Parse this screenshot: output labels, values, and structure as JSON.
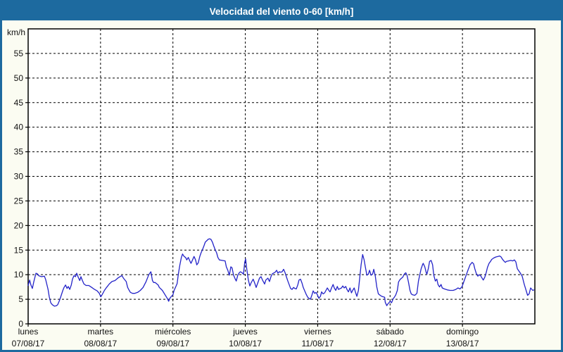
{
  "window": {
    "title": "Velocidad del viento 0-60 [km/h]"
  },
  "colors": {
    "frame_and_header": "#1d6a9f",
    "window_background": "#fbfcf2",
    "plot_background": "#ffffff",
    "grid_and_axis": "#000000",
    "tick_text": "#111111",
    "line": "#2323c8",
    "title_text": "#ffffff"
  },
  "chart_data": {
    "type": "line",
    "title": "Velocidad del viento 0-60 [km/h]",
    "unit_label": "km/h",
    "ylabel": "km/h",
    "ylim": [
      0,
      60
    ],
    "ytick_step": 5,
    "ytick_labels": [
      "0",
      "5",
      "10",
      "15",
      "20",
      "25",
      "30",
      "35",
      "40",
      "45",
      "50",
      "55"
    ],
    "grid": "dashed-both-axes",
    "legend": "none",
    "x_total_hours": 168,
    "x_categories": [
      {
        "day": "lunes",
        "date": "07/08/17"
      },
      {
        "day": "martes",
        "date": "08/08/17"
      },
      {
        "day": "miércoles",
        "date": "09/08/17"
      },
      {
        "day": "jueves",
        "date": "10/08/17"
      },
      {
        "day": "viernes",
        "date": "11/08/17"
      },
      {
        "day": "sábado",
        "date": "12/08/17"
      },
      {
        "day": "domingo",
        "date": "13/08/17"
      }
    ],
    "series": [
      {
        "name": "Velocidad del viento",
        "unit": "km/h",
        "samples": [
          [
            0,
            7.8
          ],
          [
            0.5,
            8.9
          ],
          [
            0.9,
            7.9
          ],
          [
            1.4,
            7.2
          ],
          [
            1.9,
            8.6
          ],
          [
            2.6,
            10.3
          ],
          [
            3,
            10.2
          ],
          [
            3.5,
            9.8
          ],
          [
            4.4,
            9.6
          ],
          [
            5.4,
            9.7
          ],
          [
            5.8,
            9
          ],
          [
            6.6,
            7
          ],
          [
            7,
            5.5
          ],
          [
            7.5,
            4.3
          ],
          [
            8,
            3.9
          ],
          [
            8.7,
            3.6
          ],
          [
            9.4,
            3.7
          ],
          [
            9.8,
            3.9
          ],
          [
            10.3,
            4.6
          ],
          [
            10.8,
            5.5
          ],
          [
            11.5,
            6.8
          ],
          [
            11.9,
            7.4
          ],
          [
            12.4,
            7.9
          ],
          [
            12.9,
            7.2
          ],
          [
            13.3,
            7.6
          ],
          [
            13.8,
            7
          ],
          [
            14.3,
            7.9
          ],
          [
            14.7,
            9.1
          ],
          [
            15.2,
            9.8
          ],
          [
            15.7,
            9.6
          ],
          [
            16.1,
            10.3
          ],
          [
            16.6,
            9.5
          ],
          [
            17.1,
            8.8
          ],
          [
            17.5,
            9.6
          ],
          [
            18,
            8.8
          ],
          [
            18.5,
            8.1
          ],
          [
            19.2,
            7.8
          ],
          [
            20.1,
            7.8
          ],
          [
            21.1,
            7.4
          ],
          [
            22,
            7
          ],
          [
            22.9,
            6.7
          ],
          [
            23.6,
            6.2
          ],
          [
            24.1,
            5.5
          ],
          [
            24.6,
            6
          ],
          [
            25.3,
            6.8
          ],
          [
            26,
            7.4
          ],
          [
            26.9,
            8.1
          ],
          [
            27.8,
            8.6
          ],
          [
            28.8,
            8.8
          ],
          [
            29.7,
            9.3
          ],
          [
            30.7,
            9.7
          ],
          [
            31.1,
            9.8
          ],
          [
            31.6,
            9.3
          ],
          [
            32.5,
            8.6
          ],
          [
            33,
            7.4
          ],
          [
            33.5,
            6.8
          ],
          [
            33.9,
            6.4
          ],
          [
            34.6,
            6.2
          ],
          [
            35.3,
            6.2
          ],
          [
            36.3,
            6.4
          ],
          [
            37.2,
            6.8
          ],
          [
            38.1,
            7.4
          ],
          [
            39.1,
            8.6
          ],
          [
            40,
            10
          ],
          [
            40.7,
            10.6
          ],
          [
            41.2,
            8.8
          ],
          [
            41.6,
            8.4
          ],
          [
            42.1,
            8.4
          ],
          [
            43.1,
            7.9
          ],
          [
            43.5,
            7.4
          ],
          [
            44.5,
            6.8
          ],
          [
            45.4,
            5.9
          ],
          [
            46.1,
            5.2
          ],
          [
            46.6,
            4.6
          ],
          [
            47,
            5.2
          ],
          [
            47.5,
            5.6
          ],
          [
            48,
            5.9
          ],
          [
            48.4,
            6.8
          ],
          [
            48.9,
            7.5
          ],
          [
            49.4,
            8.2
          ],
          [
            49.8,
            10.1
          ],
          [
            50.3,
            12
          ],
          [
            50.8,
            13.5
          ],
          [
            51.2,
            14.2
          ],
          [
            51.7,
            13.7
          ],
          [
            52.2,
            13.5
          ],
          [
            52.6,
            13
          ],
          [
            53.1,
            13.5
          ],
          [
            53.6,
            12.8
          ],
          [
            54,
            12.3
          ],
          [
            54.5,
            13
          ],
          [
            55,
            13.7
          ],
          [
            55.5,
            13
          ],
          [
            55.9,
            12
          ],
          [
            56.4,
            12.4
          ],
          [
            56.9,
            13.7
          ],
          [
            57.3,
            14.4
          ],
          [
            57.8,
            15.1
          ],
          [
            58.3,
            15.9
          ],
          [
            58.7,
            16.6
          ],
          [
            59.2,
            16.9
          ],
          [
            59.7,
            17.2
          ],
          [
            60.1,
            17.3
          ],
          [
            60.6,
            17.2
          ],
          [
            61.1,
            16.6
          ],
          [
            61.5,
            15.9
          ],
          [
            62,
            15.1
          ],
          [
            62.5,
            14.4
          ],
          [
            62.9,
            13.5
          ],
          [
            63.4,
            13
          ],
          [
            64.3,
            12.9
          ],
          [
            65.3,
            12.8
          ],
          [
            65.7,
            11.6
          ],
          [
            66.2,
            10.9
          ],
          [
            66.7,
            9.9
          ],
          [
            67.2,
            11.6
          ],
          [
            67.6,
            11.4
          ],
          [
            68.1,
            9.9
          ],
          [
            68.6,
            9.2
          ],
          [
            69,
            8.7
          ],
          [
            69.5,
            9.9
          ],
          [
            70,
            10.4
          ],
          [
            70.4,
            10.6
          ],
          [
            70.9,
            10.4
          ],
          [
            71.4,
            10.1
          ],
          [
            71.8,
            12.5
          ],
          [
            72.1,
            13.2
          ],
          [
            72.5,
            11.1
          ],
          [
            73,
            8.9
          ],
          [
            73.5,
            7.7
          ],
          [
            73.9,
            8.3
          ],
          [
            74.6,
            9.1
          ],
          [
            75.1,
            8.3
          ],
          [
            75.6,
            7.4
          ],
          [
            76.3,
            8.6
          ],
          [
            76.7,
            9.3
          ],
          [
            77.2,
            9.6
          ],
          [
            77.7,
            8.9
          ],
          [
            78.4,
            8.1
          ],
          [
            78.8,
            8.9
          ],
          [
            79.5,
            9.3
          ],
          [
            80,
            8.6
          ],
          [
            80.5,
            9.6
          ],
          [
            81,
            10.2
          ],
          [
            81.9,
            10.5
          ],
          [
            82.4,
            10.9
          ],
          [
            82.8,
            10.3
          ],
          [
            83.3,
            10.6
          ],
          [
            83.8,
            10.5
          ],
          [
            84.2,
            10.6
          ],
          [
            84.7,
            11.1
          ],
          [
            85.2,
            10.4
          ],
          [
            85.6,
            9.6
          ],
          [
            86.1,
            8.7
          ],
          [
            86.6,
            7.9
          ],
          [
            87,
            7.2
          ],
          [
            87.5,
            7
          ],
          [
            88,
            7.4
          ],
          [
            88.4,
            7.2
          ],
          [
            88.9,
            7.1
          ],
          [
            89.4,
            7.9
          ],
          [
            89.8,
            8.9
          ],
          [
            90.3,
            9.1
          ],
          [
            90.8,
            8.3
          ],
          [
            91.2,
            7.4
          ],
          [
            91.7,
            6.7
          ],
          [
            92.2,
            6
          ],
          [
            92.7,
            5.4
          ],
          [
            93.1,
            5.2
          ],
          [
            93.6,
            5
          ],
          [
            94.1,
            5.9
          ],
          [
            94.5,
            6.7
          ],
          [
            95,
            6.2
          ],
          [
            95.5,
            6.4
          ],
          [
            95.9,
            5.9
          ],
          [
            96.4,
            5.2
          ],
          [
            96.9,
            5.6
          ],
          [
            97.3,
            6.5
          ],
          [
            97.8,
            6.1
          ],
          [
            98.3,
            6.3
          ],
          [
            99.2,
            7.3
          ],
          [
            99.7,
            6.8
          ],
          [
            100.1,
            6.5
          ],
          [
            100.6,
            7.3
          ],
          [
            101.1,
            8
          ],
          [
            101.5,
            7.3
          ],
          [
            102,
            6.8
          ],
          [
            102.5,
            7.6
          ],
          [
            102.9,
            7
          ],
          [
            103.9,
            7.3
          ],
          [
            104.3,
            7.7
          ],
          [
            104.8,
            7.3
          ],
          [
            105.3,
            7.6
          ],
          [
            105.7,
            7
          ],
          [
            106.2,
            6.5
          ],
          [
            106.7,
            7.3
          ],
          [
            107.2,
            6.3
          ],
          [
            107.6,
            6.8
          ],
          [
            108.1,
            7.3
          ],
          [
            108.6,
            6.3
          ],
          [
            109,
            5.6
          ],
          [
            109.5,
            6.8
          ],
          [
            110,
            9.7
          ],
          [
            110.4,
            12
          ],
          [
            110.9,
            14.1
          ],
          [
            111.4,
            13
          ],
          [
            111.8,
            11.6
          ],
          [
            112.3,
            9.9
          ],
          [
            112.8,
            10.1
          ],
          [
            113.2,
            10.9
          ],
          [
            113.7,
            9.9
          ],
          [
            114.2,
            10.1
          ],
          [
            114.6,
            11.1
          ],
          [
            115.1,
            9.7
          ],
          [
            115.6,
            7.5
          ],
          [
            116.1,
            6.1
          ],
          [
            116.5,
            5.9
          ],
          [
            117.2,
            5.6
          ],
          [
            118.2,
            5.4
          ],
          [
            118.4,
            4.4
          ],
          [
            118.9,
            3.7
          ],
          [
            119.3,
            4.1
          ],
          [
            119.8,
            4.4
          ],
          [
            120,
            4.6
          ],
          [
            120.5,
            4.3
          ],
          [
            121,
            5.1
          ],
          [
            121.4,
            5.4
          ],
          [
            121.9,
            5.9
          ],
          [
            122.4,
            6.8
          ],
          [
            122.8,
            8.5
          ],
          [
            123.3,
            9
          ],
          [
            123.8,
            9.3
          ],
          [
            124.2,
            9.5
          ],
          [
            124.7,
            10.1
          ],
          [
            125.2,
            10.4
          ],
          [
            125.6,
            9.9
          ],
          [
            126.1,
            8.5
          ],
          [
            126.6,
            6.8
          ],
          [
            127,
            6.1
          ],
          [
            127.5,
            5.9
          ],
          [
            128.2,
            5.8
          ],
          [
            128.9,
            6.2
          ],
          [
            129.4,
            8.7
          ],
          [
            129.9,
            10.1
          ],
          [
            130.3,
            11.2
          ],
          [
            130.8,
            12.1
          ],
          [
            131,
            12.3
          ],
          [
            131.5,
            11.6
          ],
          [
            132,
            10.4
          ],
          [
            132.2,
            10.1
          ],
          [
            132.7,
            11.3
          ],
          [
            133.1,
            12.7
          ],
          [
            133.6,
            12.9
          ],
          [
            134.1,
            12
          ],
          [
            134.5,
            9.9
          ],
          [
            135,
            8.7
          ],
          [
            135.5,
            9.1
          ],
          [
            135.9,
            8
          ],
          [
            136.4,
            7.5
          ],
          [
            136.9,
            8
          ],
          [
            137.3,
            7.3
          ],
          [
            138,
            7.1
          ],
          [
            139,
            6.9
          ],
          [
            139.9,
            6.8
          ],
          [
            140.9,
            6.8
          ],
          [
            141.8,
            7
          ],
          [
            142.5,
            7.3
          ],
          [
            143.2,
            7.1
          ],
          [
            143.9,
            7.6
          ],
          [
            144.4,
            8.5
          ],
          [
            145.1,
            9.7
          ],
          [
            145.8,
            10.9
          ],
          [
            146.5,
            12
          ],
          [
            147.2,
            12.5
          ],
          [
            147.7,
            12.2
          ],
          [
            148.1,
            11.2
          ],
          [
            148.6,
            10.2
          ],
          [
            149.1,
            9.7
          ],
          [
            149.5,
            10
          ],
          [
            150,
            9.8
          ],
          [
            150.5,
            9.3
          ],
          [
            150.9,
            8.9
          ],
          [
            151.4,
            9.5
          ],
          [
            151.9,
            10.5
          ],
          [
            152.3,
            11.5
          ],
          [
            152.8,
            12.3
          ],
          [
            153.3,
            12.7
          ],
          [
            153.7,
            13.1
          ],
          [
            154.4,
            13.4
          ],
          [
            155.1,
            13.6
          ],
          [
            155.8,
            13.7
          ],
          [
            156.3,
            13.8
          ],
          [
            156.8,
            13.6
          ],
          [
            157.2,
            13.2
          ],
          [
            157.7,
            12.8
          ],
          [
            158.2,
            12.5
          ],
          [
            158.6,
            12.7
          ],
          [
            159.3,
            12.8
          ],
          [
            160,
            12.9
          ],
          [
            160.7,
            12.8
          ],
          [
            161.2,
            13
          ],
          [
            161.7,
            12.6
          ],
          [
            162.2,
            11.2
          ],
          [
            163.1,
            10.4
          ],
          [
            163.8,
            9.7
          ],
          [
            164.5,
            8
          ],
          [
            165.2,
            6.6
          ],
          [
            165.6,
            5.8
          ],
          [
            166.1,
            6.1
          ],
          [
            166.6,
            7.3
          ],
          [
            167.3,
            6.8
          ],
          [
            167.7,
            6.9
          ]
        ]
      }
    ]
  }
}
